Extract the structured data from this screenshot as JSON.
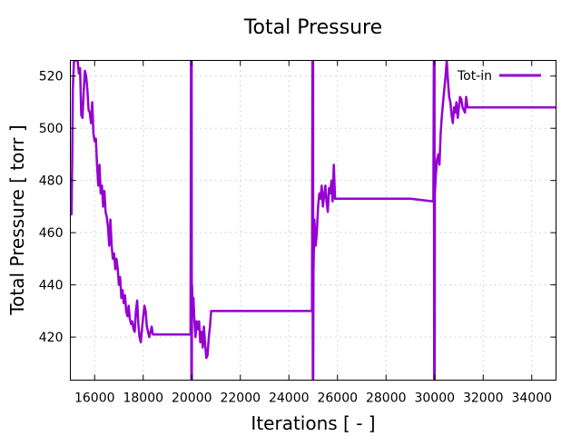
{
  "chart_data": {
    "type": "line",
    "title": "Total Pressure",
    "xlabel": "Iterations [ - ]",
    "ylabel": "Total Pressure [ torr ]",
    "xlim": [
      15000,
      35000
    ],
    "ylim": [
      403.5,
      526
    ],
    "xticks": [
      16000,
      18000,
      20000,
      22000,
      24000,
      26000,
      28000,
      30000,
      32000,
      34000
    ],
    "yticks": [
      420,
      440,
      460,
      480,
      500,
      520
    ],
    "grid": true,
    "legend_position": "top-right",
    "series": [
      {
        "name": "Tot-in",
        "color": "#9400d3",
        "x": [
          15000,
          15050,
          15080,
          15100,
          15150,
          15200,
          15250,
          15300,
          15350,
          15400,
          15450,
          15500,
          15550,
          15600,
          15650,
          15700,
          15750,
          15800,
          15850,
          15900,
          15950,
          16000,
          16050,
          16100,
          16150,
          16200,
          16250,
          16300,
          16350,
          16400,
          16450,
          16500,
          16550,
          16600,
          16650,
          16700,
          16750,
          16800,
          16850,
          16900,
          16950,
          17000,
          17050,
          17100,
          17150,
          17200,
          17250,
          17300,
          17350,
          17400,
          17450,
          17500,
          17550,
          17600,
          17650,
          17700,
          17750,
          17800,
          17850,
          17900,
          17950,
          18000,
          18050,
          18100,
          18150,
          18200,
          18250,
          18300,
          18350,
          18400,
          18500,
          19000,
          19500,
          19950,
          19970,
          19985,
          19995,
          20000,
          20010,
          20040,
          20070,
          20100,
          20150,
          20200,
          20250,
          20300,
          20350,
          20400,
          20450,
          20500,
          20550,
          20600,
          20650,
          20700,
          20750,
          20800,
          21000,
          22000,
          23000,
          24000,
          24950,
          24970,
          24985,
          24995,
          25000,
          25010,
          25050,
          25100,
          25150,
          25200,
          25250,
          25300,
          25350,
          25400,
          25450,
          25500,
          25550,
          25600,
          25650,
          25700,
          25750,
          25800,
          25850,
          25900,
          26000,
          27000,
          28000,
          29000,
          29950,
          29970,
          29985,
          29995,
          30000,
          30010,
          30050,
          30100,
          30150,
          30200,
          30250,
          30300,
          30350,
          30400,
          30450,
          30500,
          30550,
          30600,
          30650,
          30700,
          30750,
          30800,
          30850,
          30900,
          30950,
          31000,
          31050,
          31100,
          31150,
          31200,
          31250,
          31300,
          31350,
          31400,
          31500,
          31700,
          32000,
          33000,
          34000,
          35000
        ],
        "y": [
          467,
          467,
          490,
          515,
          526,
          526,
          526,
          526,
          521,
          523,
          505,
          504,
          514,
          522,
          520,
          515,
          507,
          506,
          502,
          510,
          498,
          495,
          496,
          486,
          478,
          486,
          475,
          478,
          470,
          476,
          468,
          466,
          462,
          455,
          465,
          455,
          450,
          452,
          446,
          450,
          446,
          440,
          443,
          435,
          438,
          433,
          436,
          430,
          428,
          432,
          427,
          425,
          426,
          423,
          422,
          430,
          434,
          425,
          420,
          418,
          423,
          428,
          432,
          430,
          424,
          422,
          420,
          422,
          424,
          421,
          421,
          421,
          421,
          421,
          526,
          403.5,
          526,
          403.5,
          440,
          432,
          435,
          428,
          420,
          426,
          423,
          426,
          418,
          422,
          416,
          424,
          417,
          412,
          413,
          420,
          424,
          430,
          430,
          430,
          430,
          430,
          430,
          526,
          403.5,
          526,
          403.5,
          445,
          465,
          455,
          460,
          470,
          475,
          473,
          478,
          470,
          474,
          478,
          472,
          468,
          477,
          475,
          480,
          472,
          486,
          473,
          473,
          473,
          473,
          473,
          472,
          526,
          403.5,
          526,
          403.5,
          475,
          482,
          488,
          490,
          486,
          498,
          505,
          510,
          515,
          520,
          526,
          518,
          512,
          510,
          505,
          502,
          508,
          506,
          510,
          504,
          508,
          512,
          511,
          508,
          507,
          506,
          512,
          508,
          508,
          508,
          508,
          508,
          508,
          508,
          508
        ]
      }
    ]
  }
}
